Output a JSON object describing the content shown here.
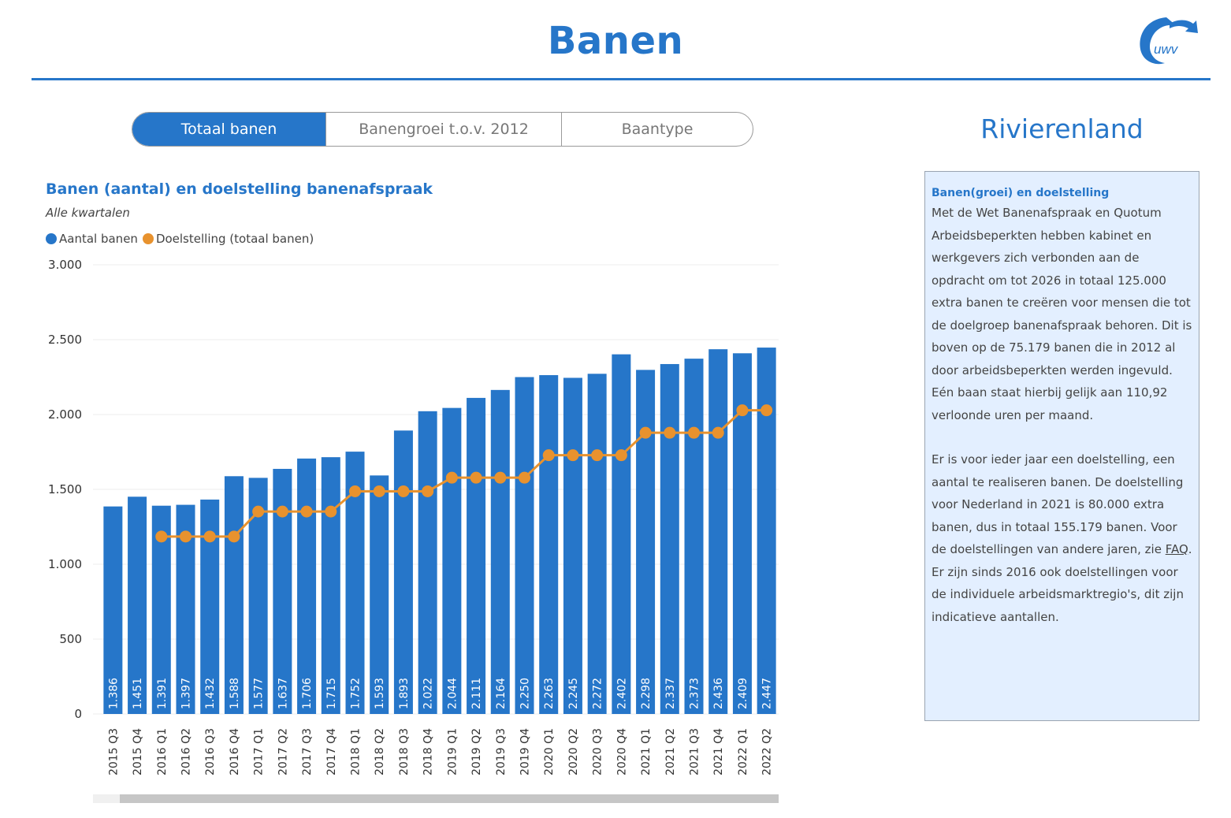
{
  "header": {
    "title": "Banen",
    "logo_text": "uwv"
  },
  "tabs": [
    {
      "label": "Totaal banen",
      "active": true
    },
    {
      "label": "Banengroei t.o.v. 2012",
      "active": false
    },
    {
      "label": "Baantype",
      "active": false
    }
  ],
  "region": "Rivierenland",
  "info": {
    "heading": "Banen(groei) en doelstelling",
    "para1": "Met de Wet Banenafspraak en Quotum Arbeidsbeperkten hebben kabinet en werkgevers zich verbonden aan de opdracht om tot 2026 in totaal 125.000 extra banen te creëren voor mensen die tot de doelgroep banenafspraak behoren. Dit is boven op de 75.179 banen die in 2012 al door arbeidsbeperkten werden ingevuld. Eén baan staat hierbij gelijk aan 110,92 verloonde uren per maand.",
    "para2_before": "Er is voor ieder jaar een doelstelling, een aantal te realiseren banen. De doelstelling voor Nederland in 2021 is 80.000 extra banen, dus in totaal 155.179  banen. Voor de doelstellingen van andere jaren, zie ",
    "faq_label": "FAQ",
    "para2_after": ". Er zijn sinds 2016 ook doelstellingen voor de individuele arbeidsmarktregio's, dit zijn indicatieve aantallen."
  },
  "chart_data": {
    "type": "bar",
    "title": "Banen (aantal) en doelstelling banenafspraak",
    "subtitle": "Alle kwartalen",
    "categories": [
      "2015 Q3",
      "2015 Q4",
      "2016 Q1",
      "2016 Q2",
      "2016 Q3",
      "2016 Q4",
      "2017 Q1",
      "2017 Q2",
      "2017 Q3",
      "2017 Q4",
      "2018 Q1",
      "2018 Q2",
      "2018 Q3",
      "2018 Q4",
      "2019 Q1",
      "2019 Q2",
      "2019 Q3",
      "2019 Q4",
      "2020 Q1",
      "2020 Q2",
      "2020 Q3",
      "2020 Q4",
      "2021 Q1",
      "2021 Q2",
      "2021 Q3",
      "2021 Q4",
      "2022 Q1",
      "2022 Q2"
    ],
    "series": [
      {
        "name": "Aantal banen",
        "type": "bar",
        "color": "#2676c9",
        "values": [
          1386,
          1451,
          1391,
          1397,
          1432,
          1588,
          1577,
          1637,
          1706,
          1715,
          1752,
          1593,
          1893,
          2022,
          2044,
          2111,
          2164,
          2250,
          2263,
          2245,
          2272,
          2402,
          2298,
          2337,
          2373,
          2436,
          2409,
          2447
        ],
        "labels": [
          "1.386",
          "1.451",
          "1.391",
          "1.397",
          "1.432",
          "1.588",
          "1.577",
          "1.637",
          "1.706",
          "1.715",
          "1.752",
          "1.593",
          "1.893",
          "2.022",
          "2.044",
          "2.111",
          "2.164",
          "2.250",
          "2.263",
          "2.245",
          "2.272",
          "2.402",
          "2.298",
          "2.337",
          "2.373",
          "2.436",
          "2.409",
          "2.447"
        ]
      },
      {
        "name": "Doelstelling (totaal banen)",
        "type": "line",
        "color": "#e8922e",
        "values": [
          null,
          null,
          1185,
          1185,
          1185,
          1185,
          1352,
          1352,
          1352,
          1352,
          1487,
          1487,
          1487,
          1487,
          1578,
          1578,
          1578,
          1578,
          1728,
          1728,
          1728,
          1728,
          1878,
          1878,
          1878,
          1878,
          2028,
          2028
        ]
      }
    ],
    "ylim": [
      0,
      3000
    ],
    "yticks": [
      0,
      500,
      1000,
      1500,
      2000,
      2500,
      3000
    ],
    "ytick_labels": [
      "0",
      "500",
      "1.000",
      "1.500",
      "2.000",
      "2.500",
      "3.000"
    ],
    "grid": true,
    "legend_position": "top-left"
  }
}
